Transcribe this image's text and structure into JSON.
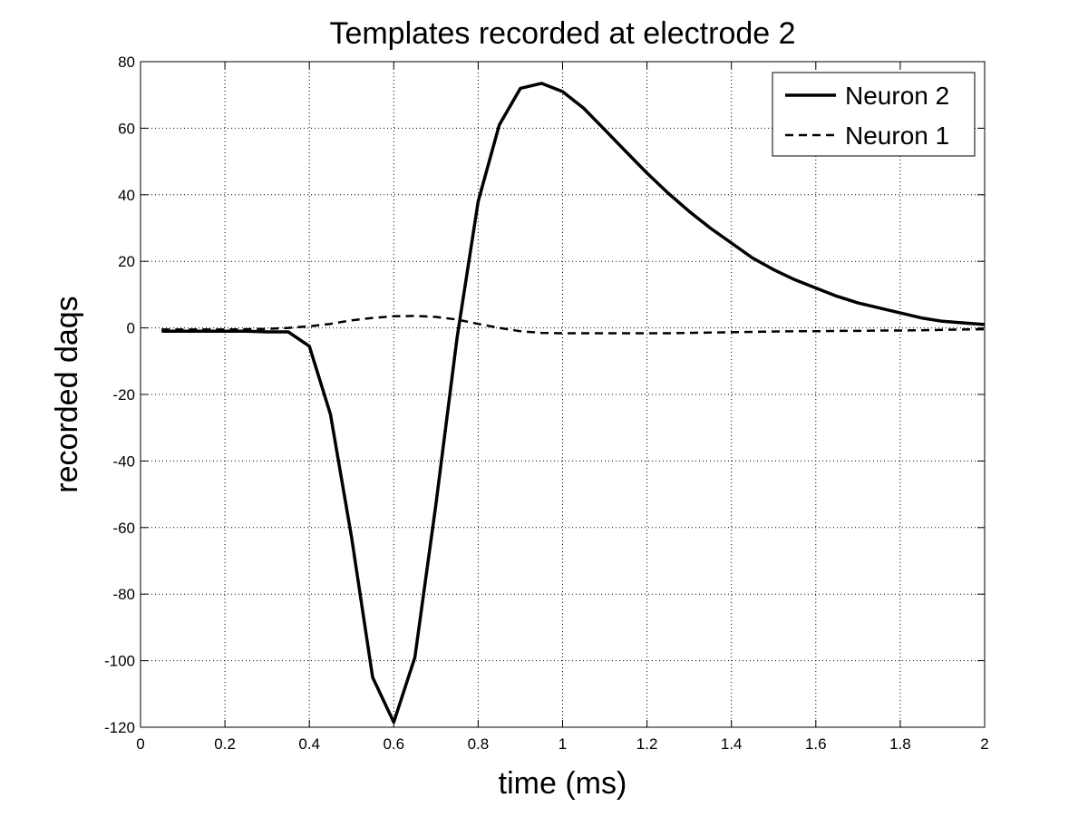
{
  "chart_data": {
    "type": "line",
    "title": "Templates recorded at electrode 2",
    "xlabel": "time (ms)",
    "ylabel": "recorded daqs",
    "xlim": [
      0,
      2
    ],
    "ylim": [
      -120,
      80
    ],
    "xticks": [
      0,
      0.2,
      0.4,
      0.6,
      0.8,
      1,
      1.2,
      1.4,
      1.6,
      1.8,
      2
    ],
    "xtick_labels": [
      "0",
      "0.2",
      "0.4",
      "0.6",
      "0.8",
      "1",
      "1.2",
      "1.4",
      "1.6",
      "1.8",
      "2"
    ],
    "yticks": [
      -120,
      -100,
      -80,
      -60,
      -40,
      -20,
      0,
      20,
      40,
      60,
      80
    ],
    "ytick_labels": [
      "-120",
      "-100",
      "-80",
      "-60",
      "-40",
      "-20",
      "0",
      "20",
      "40",
      "60",
      "80"
    ],
    "grid": true,
    "legend_position": "top-right",
    "series": [
      {
        "name": "Neuron 2",
        "line_style": "solid",
        "color": "#000000",
        "x": [
          0.05,
          0.1,
          0.15,
          0.2,
          0.25,
          0.3,
          0.35,
          0.4,
          0.45,
          0.5,
          0.55,
          0.6,
          0.65,
          0.7,
          0.75,
          0.8,
          0.85,
          0.9,
          0.95,
          1.0,
          1.05,
          1.1,
          1.15,
          1.2,
          1.25,
          1.3,
          1.35,
          1.4,
          1.45,
          1.5,
          1.55,
          1.6,
          1.65,
          1.7,
          1.75,
          1.8,
          1.85,
          1.9,
          1.95,
          2.0
        ],
        "y": [
          -1,
          -1,
          -1,
          -1,
          -1,
          -1.2,
          -1.2,
          -5.5,
          -26,
          -63,
          -105,
          -118.5,
          -99,
          -53,
          -3,
          38,
          61,
          72,
          73.5,
          71,
          66,
          59.5,
          53,
          46.5,
          40.5,
          35,
          30,
          25.5,
          21,
          17.5,
          14.5,
          12,
          9.5,
          7.5,
          6,
          4.5,
          3,
          2,
          1.5,
          1
        ]
      },
      {
        "name": "Neuron 1",
        "line_style": "dashed",
        "color": "#000000",
        "x": [
          0.05,
          0.1,
          0.15,
          0.2,
          0.25,
          0.3,
          0.35,
          0.4,
          0.45,
          0.5,
          0.55,
          0.6,
          0.65,
          0.7,
          0.75,
          0.8,
          0.85,
          0.9,
          0.95,
          1.0,
          1.05,
          1.1,
          1.15,
          1.2,
          1.25,
          1.3,
          1.35,
          1.4,
          1.45,
          1.5,
          1.55,
          1.6,
          1.65,
          1.7,
          1.75,
          1.8,
          1.85,
          1.9,
          1.95,
          2.0
        ],
        "y": [
          -0.5,
          -0.5,
          -0.5,
          -0.5,
          -0.4,
          -0.3,
          0,
          0.5,
          1.2,
          2.3,
          3,
          3.5,
          3.6,
          3.3,
          2.5,
          1.2,
          0,
          -1,
          -1.5,
          -1.6,
          -1.6,
          -1.6,
          -1.6,
          -1.6,
          -1.6,
          -1.5,
          -1.4,
          -1.3,
          -1.2,
          -1.1,
          -1,
          -1,
          -0.9,
          -0.9,
          -0.8,
          -0.8,
          -0.7,
          -0.6,
          -0.5,
          -0.4
        ]
      }
    ]
  }
}
